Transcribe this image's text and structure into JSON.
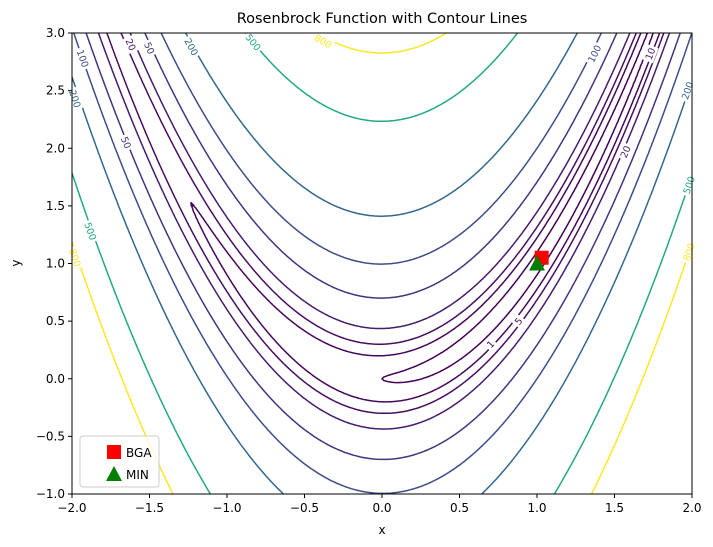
{
  "chart_data": {
    "type": "contour",
    "title": "Rosenbrock Function with Contour Lines",
    "xlabel": "x",
    "ylabel": "y",
    "xlim": [
      -2.0,
      2.0
    ],
    "ylim": [
      -1.0,
      3.0
    ],
    "x_ticks": [
      "−2.0",
      "−1.5",
      "−1.0",
      "−0.5",
      "0.0",
      "0.5",
      "1.0",
      "1.5",
      "2.0"
    ],
    "y_ticks": [
      "−1.0",
      "−0.5",
      "0.0",
      "0.5",
      "1.0",
      "1.5",
      "2.0",
      "2.5",
      "3.0"
    ],
    "function": "(1 - x)^2 + 100 (y - x^2)^2",
    "contour_levels": [
      1,
      5,
      10,
      20,
      50,
      100,
      200,
      500,
      800
    ],
    "level_colors": {
      "1": "#440154",
      "5": "#46075a",
      "10": "#470e61",
      "20": "#471b6e",
      "50": "#46337f",
      "100": "#3d4d8a",
      "200": "#31688e",
      "500": "#22a884",
      "800": "#fde725"
    },
    "contour_labels": [
      {
        "level": "1",
        "x": 0.7,
        "y": 0.3
      },
      {
        "level": "5",
        "x": 0.88,
        "y": 0.5
      },
      {
        "level": "10",
        "x": 1.73,
        "y": 2.82
      },
      {
        "level": "20",
        "x": 1.57,
        "y": 1.97
      },
      {
        "level": "50",
        "x": -1.5,
        "y": 2.87
      },
      {
        "level": "50",
        "x": -1.65,
        "y": 2.05
      },
      {
        "level": "20",
        "x": -1.62,
        "y": 2.9
      },
      {
        "level": "100",
        "x": -1.93,
        "y": 2.78
      },
      {
        "level": "100",
        "x": 1.37,
        "y": 2.82
      },
      {
        "level": "200",
        "x": -1.23,
        "y": 2.88
      },
      {
        "level": "200",
        "x": -1.98,
        "y": 2.43
      },
      {
        "level": "200",
        "x": 1.97,
        "y": 2.5
      },
      {
        "level": "500",
        "x": -0.83,
        "y": 2.92
      },
      {
        "level": "500",
        "x": -1.88,
        "y": 1.28
      },
      {
        "level": "500",
        "x": 1.98,
        "y": 1.68
      },
      {
        "level": "800",
        "x": -0.38,
        "y": 2.93
      },
      {
        "level": "800",
        "x": -1.98,
        "y": 1.05
      },
      {
        "level": "800",
        "x": 1.98,
        "y": 1.1
      }
    ],
    "markers": [
      {
        "name": "BGA",
        "x": 1.03,
        "y": 1.05,
        "shape": "square",
        "color": "#ff0000"
      },
      {
        "name": "MIN",
        "x": 1.0,
        "y": 1.0,
        "shape": "triangle",
        "color": "#008000"
      }
    ],
    "legend": {
      "position": "lower-left",
      "entries": [
        "BGA",
        "MIN"
      ]
    }
  }
}
